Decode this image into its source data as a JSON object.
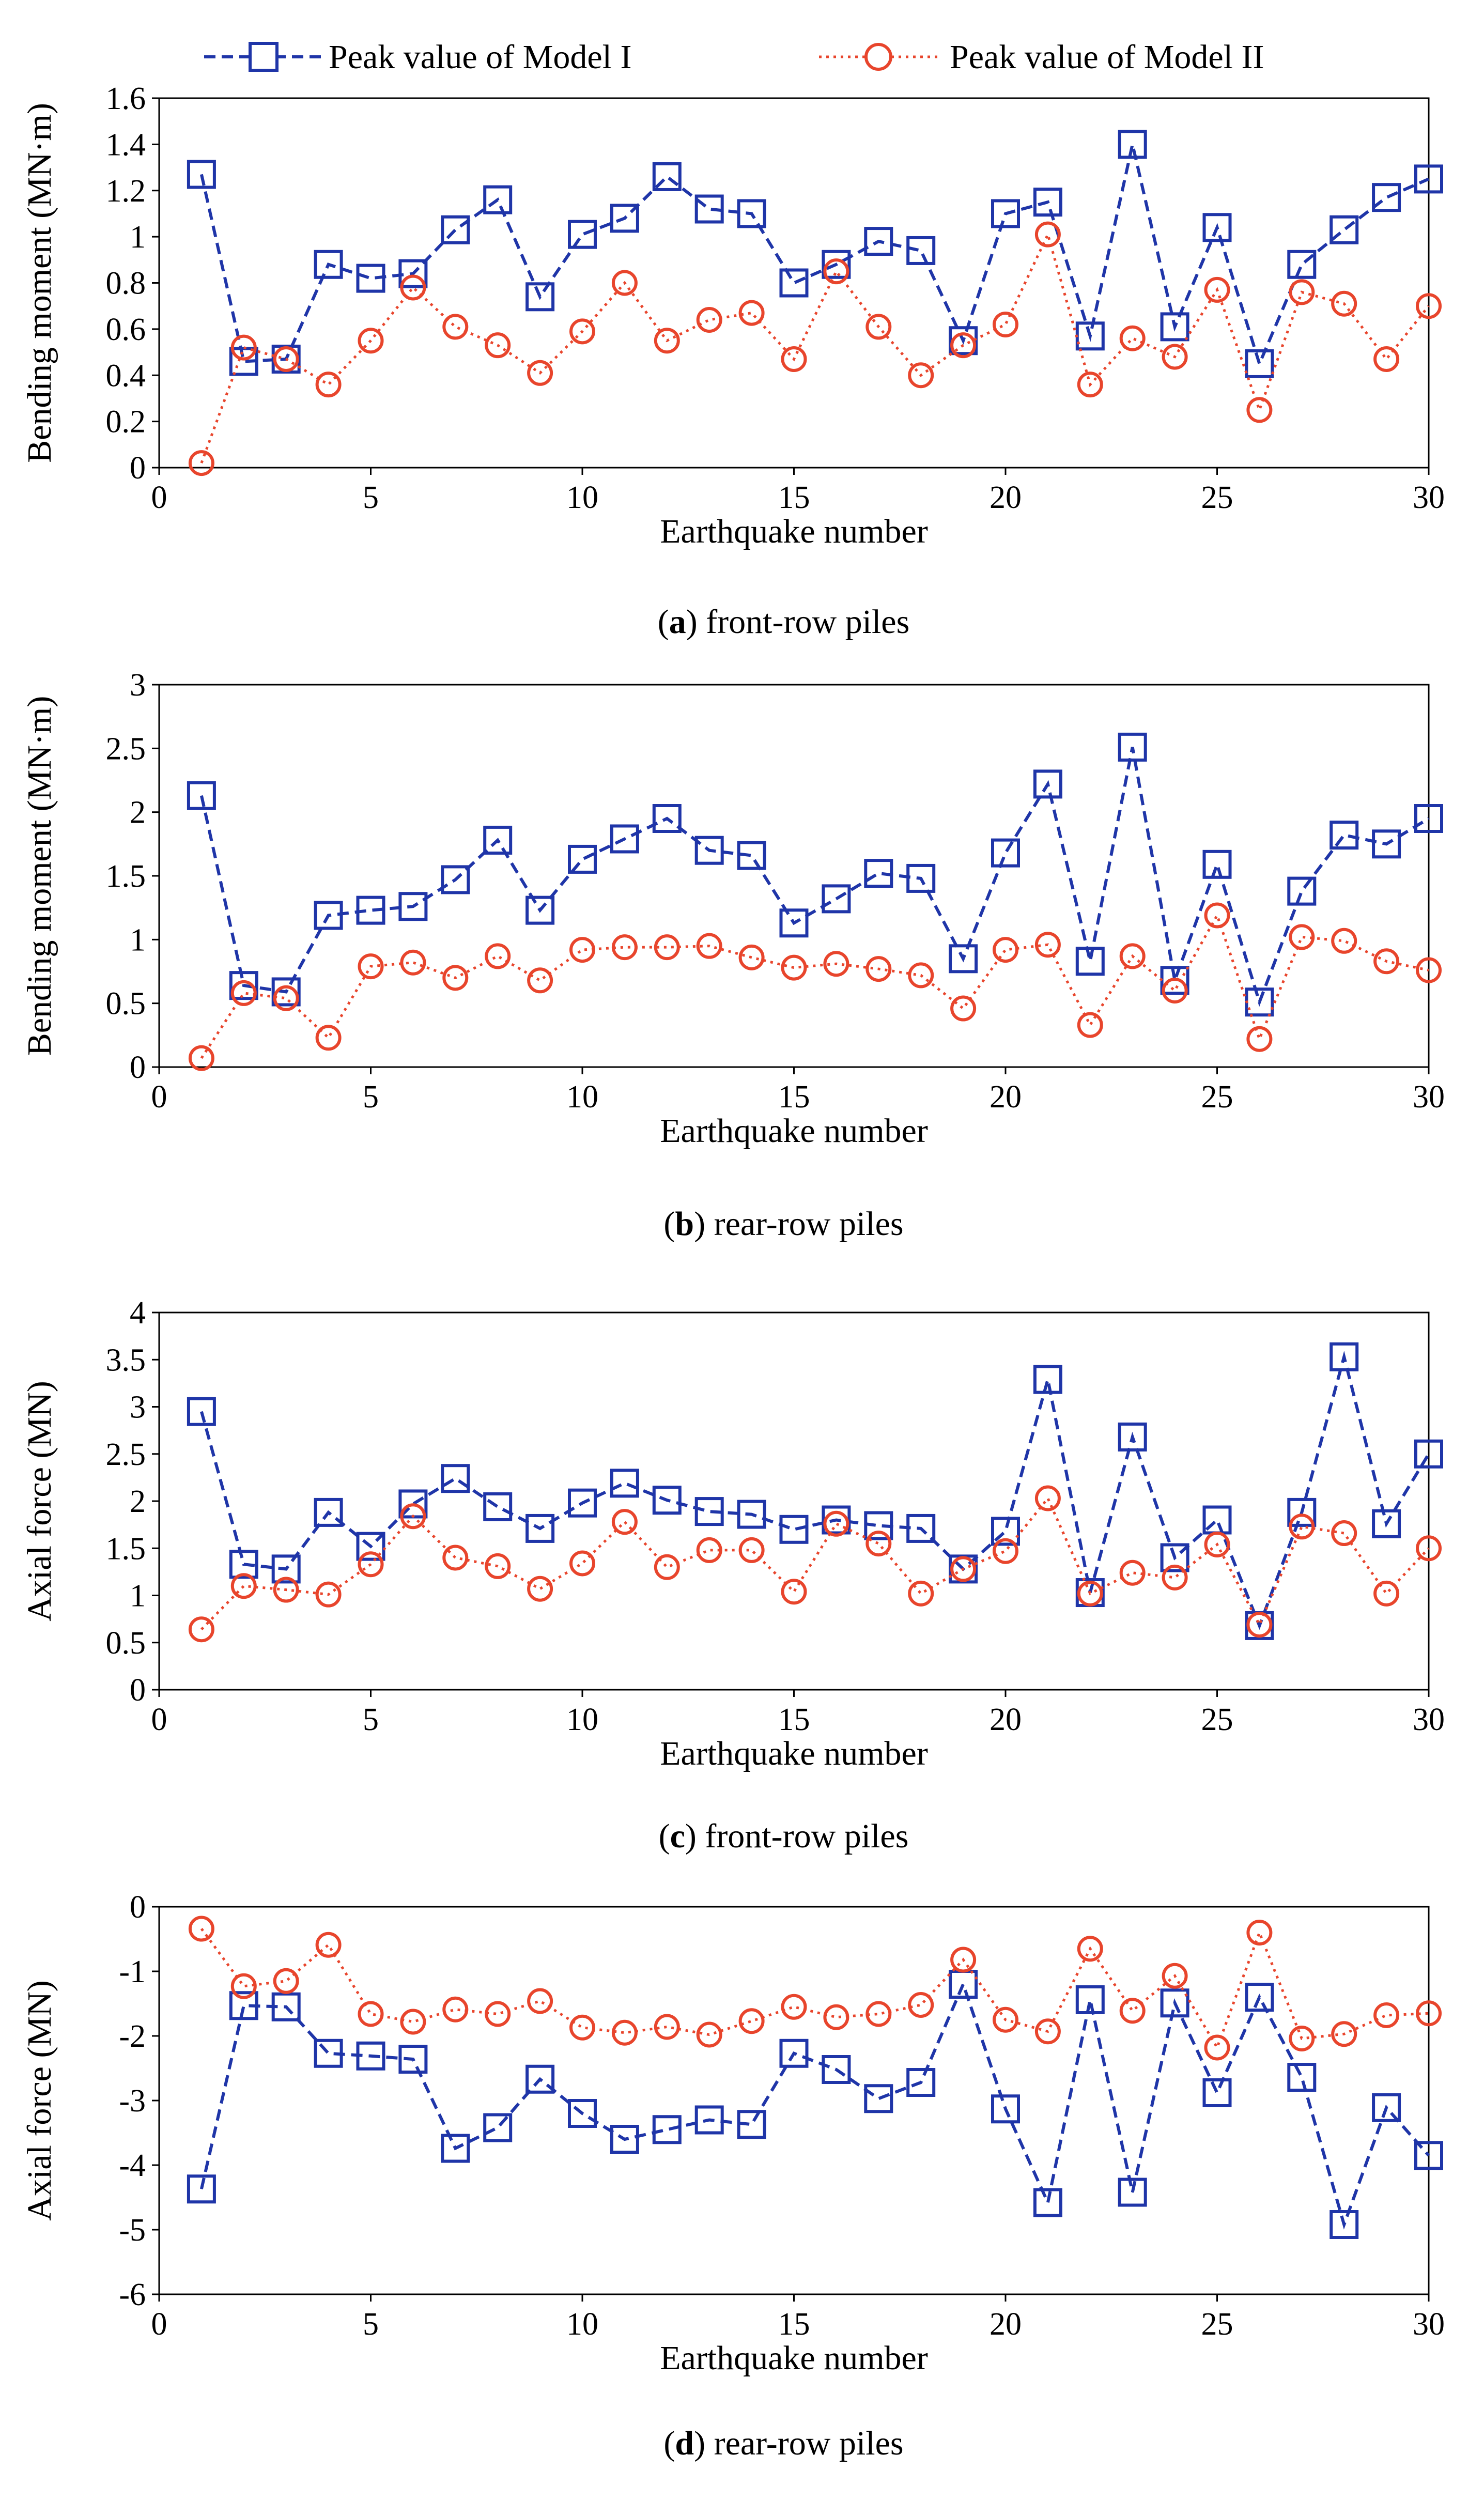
{
  "legend": {
    "model1_label": "Peak value of Model I",
    "model2_label": "Peak value of Model II"
  },
  "colors": {
    "model1": "#1f35a8",
    "model2": "#e8452c"
  },
  "chart_data": [
    {
      "type": "line",
      "panel": "a",
      "caption_letter": "a",
      "caption_text": " front-row piles",
      "xlabel": "Earthquake number",
      "ylabel": "Bending moment (MN·m)",
      "xlim": [
        0,
        30
      ],
      "ylim": [
        0,
        1.6
      ],
      "xticks": [
        0,
        5,
        10,
        15,
        20,
        25,
        30
      ],
      "yticks": [
        0,
        0.2,
        0.4,
        0.6,
        0.8,
        1,
        1.2,
        1.4,
        1.6
      ],
      "ytick_labels": [
        "0",
        "0.2",
        "0.4",
        "0.6",
        "0.8",
        "1",
        "1.2",
        "1.4",
        "1.6"
      ],
      "x": [
        1,
        2,
        3,
        4,
        5,
        6,
        7,
        8,
        9,
        10,
        11,
        12,
        13,
        14,
        15,
        16,
        17,
        18,
        19,
        20,
        21,
        22,
        23,
        24,
        25,
        26,
        27,
        28,
        29,
        30
      ],
      "series": [
        {
          "name": "Peak value of Model I",
          "values": [
            1.27,
            0.46,
            0.47,
            0.88,
            0.82,
            0.84,
            1.03,
            1.16,
            0.74,
            1.01,
            1.08,
            1.26,
            1.12,
            1.1,
            0.8,
            0.88,
            0.98,
            0.94,
            0.55,
            1.1,
            1.15,
            0.57,
            1.4,
            0.61,
            1.04,
            0.45,
            0.88,
            1.03,
            1.17,
            1.25
          ]
        },
        {
          "name": "Peak value of Model II",
          "values": [
            0.02,
            0.52,
            0.47,
            0.36,
            0.55,
            0.78,
            0.61,
            0.53,
            0.41,
            0.59,
            0.8,
            0.55,
            0.64,
            0.67,
            0.47,
            0.85,
            0.61,
            0.4,
            0.53,
            0.62,
            1.01,
            0.36,
            0.56,
            0.48,
            0.77,
            0.25,
            0.76,
            0.71,
            0.47,
            0.7
          ]
        }
      ]
    },
    {
      "type": "line",
      "panel": "b",
      "caption_letter": "b",
      "caption_text": " rear-row piles",
      "xlabel": "Earthquake number",
      "ylabel": "Bending moment (MN·m)",
      "xlim": [
        0,
        30
      ],
      "ylim": [
        0,
        3
      ],
      "xticks": [
        0,
        5,
        10,
        15,
        20,
        25,
        30
      ],
      "yticks": [
        0,
        0.5,
        1,
        1.5,
        2,
        2.5,
        3
      ],
      "ytick_labels": [
        "0",
        "0.5",
        "1",
        "1.5",
        "2",
        "2.5",
        "3"
      ],
      "x": [
        1,
        2,
        3,
        4,
        5,
        6,
        7,
        8,
        9,
        10,
        11,
        12,
        13,
        14,
        15,
        16,
        17,
        18,
        19,
        20,
        21,
        22,
        23,
        24,
        25,
        26,
        27,
        28,
        29,
        30
      ],
      "series": [
        {
          "name": "Peak value of Model I",
          "values": [
            2.13,
            0.64,
            0.59,
            1.19,
            1.23,
            1.26,
            1.47,
            1.78,
            1.23,
            1.63,
            1.79,
            1.95,
            1.7,
            1.66,
            1.13,
            1.32,
            1.52,
            1.48,
            0.85,
            1.68,
            2.22,
            0.83,
            2.51,
            0.68,
            1.59,
            0.51,
            1.38,
            1.82,
            1.75,
            1.95
          ]
        },
        {
          "name": "Peak value of Model II",
          "values": [
            0.07,
            0.58,
            0.54,
            0.23,
            0.79,
            0.82,
            0.7,
            0.87,
            0.68,
            0.92,
            0.94,
            0.94,
            0.95,
            0.86,
            0.78,
            0.81,
            0.77,
            0.72,
            0.46,
            0.92,
            0.96,
            0.33,
            0.87,
            0.6,
            1.19,
            0.22,
            1.02,
            0.99,
            0.83,
            0.76
          ]
        }
      ]
    },
    {
      "type": "line",
      "panel": "c",
      "caption_letter": "c",
      "caption_text": " front-row piles",
      "xlabel": "Earthquake number",
      "ylabel": "Axial force (MN)",
      "xlim": [
        0,
        30
      ],
      "ylim": [
        0,
        4
      ],
      "xticks": [
        0,
        5,
        10,
        15,
        20,
        25,
        30
      ],
      "yticks": [
        0,
        0.5,
        1,
        1.5,
        2,
        2.5,
        3,
        3.5,
        4
      ],
      "ytick_labels": [
        "0",
        "0.5",
        "1",
        "1.5",
        "2",
        "2.5",
        "3",
        "3.5",
        "4"
      ],
      "x": [
        1,
        2,
        3,
        4,
        5,
        6,
        7,
        8,
        9,
        10,
        11,
        12,
        13,
        14,
        15,
        16,
        17,
        18,
        19,
        20,
        21,
        22,
        23,
        24,
        25,
        26,
        27,
        28,
        29,
        30
      ],
      "series": [
        {
          "name": "Peak value of Model I",
          "values": [
            2.95,
            1.33,
            1.28,
            1.88,
            1.52,
            1.97,
            2.24,
            1.94,
            1.71,
            1.98,
            2.19,
            2.01,
            1.89,
            1.86,
            1.7,
            1.8,
            1.74,
            1.71,
            1.28,
            1.68,
            3.29,
            1.03,
            2.68,
            1.4,
            1.8,
            0.68,
            1.88,
            3.53,
            1.76,
            2.5
          ]
        },
        {
          "name": "Peak value of Model II",
          "values": [
            0.64,
            1.1,
            1.06,
            1.01,
            1.33,
            1.84,
            1.4,
            1.31,
            1.07,
            1.34,
            1.78,
            1.3,
            1.48,
            1.48,
            1.04,
            1.76,
            1.55,
            1.02,
            1.28,
            1.47,
            2.03,
            1.02,
            1.24,
            1.19,
            1.54,
            0.69,
            1.73,
            1.66,
            1.02,
            1.5
          ]
        }
      ]
    },
    {
      "type": "line",
      "panel": "d",
      "caption_letter": "d",
      "caption_text": " rear-row piles",
      "xlabel": "Earthquake number",
      "ylabel": "Axial force (MN)",
      "xlim": [
        0,
        30
      ],
      "ylim": [
        -6,
        0
      ],
      "xticks": [
        0,
        5,
        10,
        15,
        20,
        25,
        30
      ],
      "yticks": [
        -6,
        -5,
        -4,
        -3,
        -2,
        -1,
        0
      ],
      "ytick_labels": [
        "-6",
        "-5",
        "-4",
        "-3",
        "-2",
        "-1",
        "0"
      ],
      "x": [
        1,
        2,
        3,
        4,
        5,
        6,
        7,
        8,
        9,
        10,
        11,
        12,
        13,
        14,
        15,
        16,
        17,
        18,
        19,
        20,
        21,
        22,
        23,
        24,
        25,
        26,
        27,
        28,
        29,
        30
      ],
      "series": [
        {
          "name": "Peak value of Model I",
          "values": [
            -4.37,
            -1.53,
            -1.55,
            -2.27,
            -2.31,
            -2.36,
            -3.74,
            -3.42,
            -2.67,
            -3.2,
            -3.6,
            -3.45,
            -3.3,
            -3.37,
            -2.27,
            -2.52,
            -2.97,
            -2.72,
            -1.2,
            -3.13,
            -4.58,
            -1.44,
            -4.42,
            -1.49,
            -2.88,
            -1.4,
            -2.64,
            -4.92,
            -3.11,
            -3.85
          ]
        },
        {
          "name": "Peak value of Model II",
          "values": [
            -0.34,
            -1.23,
            -1.15,
            -0.59,
            -1.66,
            -1.78,
            -1.59,
            -1.66,
            -1.46,
            -1.87,
            -1.95,
            -1.86,
            -1.98,
            -1.77,
            -1.55,
            -1.71,
            -1.66,
            -1.52,
            -0.82,
            -1.75,
            -1.93,
            -0.65,
            -1.61,
            -1.07,
            -2.18,
            -0.4,
            -2.04,
            -1.97,
            -1.68,
            -1.65
          ]
        }
      ]
    }
  ]
}
